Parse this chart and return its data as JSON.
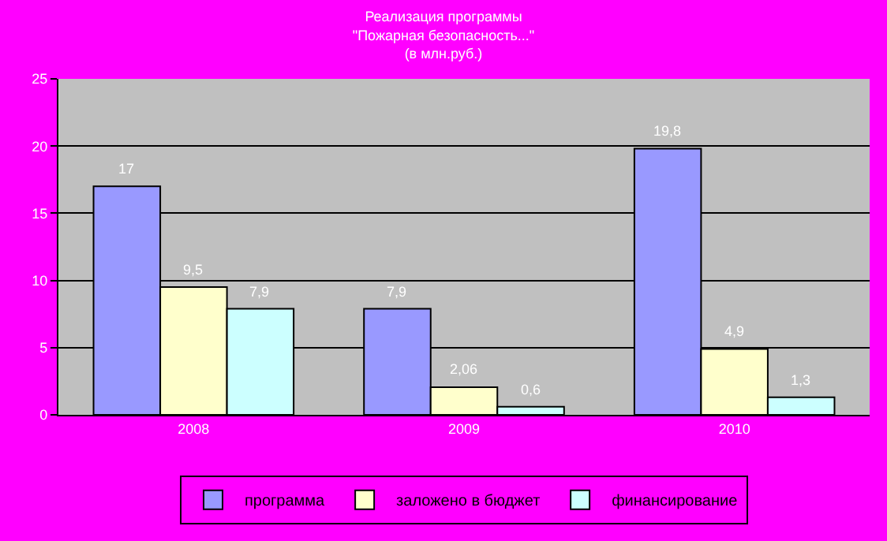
{
  "chart_data": {
    "type": "bar",
    "title": "Реализация программы\n\"Пожарная безопасность...\"\n(в млн.руб.)",
    "categories": [
      "2008",
      "2009",
      "2010"
    ],
    "series": [
      {
        "name": "программа",
        "color": "#9999ff",
        "values": [
          17,
          7.9,
          19.8
        ],
        "value_labels": [
          "17",
          "7,9",
          "19,8"
        ]
      },
      {
        "name": "заложено в бюджет",
        "color": "#ffffcc",
        "values": [
          9.5,
          2.06,
          4.9
        ],
        "value_labels": [
          "9,5",
          "2,06",
          "4,9"
        ]
      },
      {
        "name": "финансирование",
        "color": "#ccffff",
        "values": [
          7.9,
          0.6,
          1.3
        ],
        "value_labels": [
          "7,9",
          "0,6",
          "1,3"
        ]
      }
    ],
    "ylim": [
      0,
      25
    ],
    "yticks": [
      0,
      5,
      10,
      15,
      20,
      25
    ],
    "grid": "y",
    "legend": "bottom"
  }
}
